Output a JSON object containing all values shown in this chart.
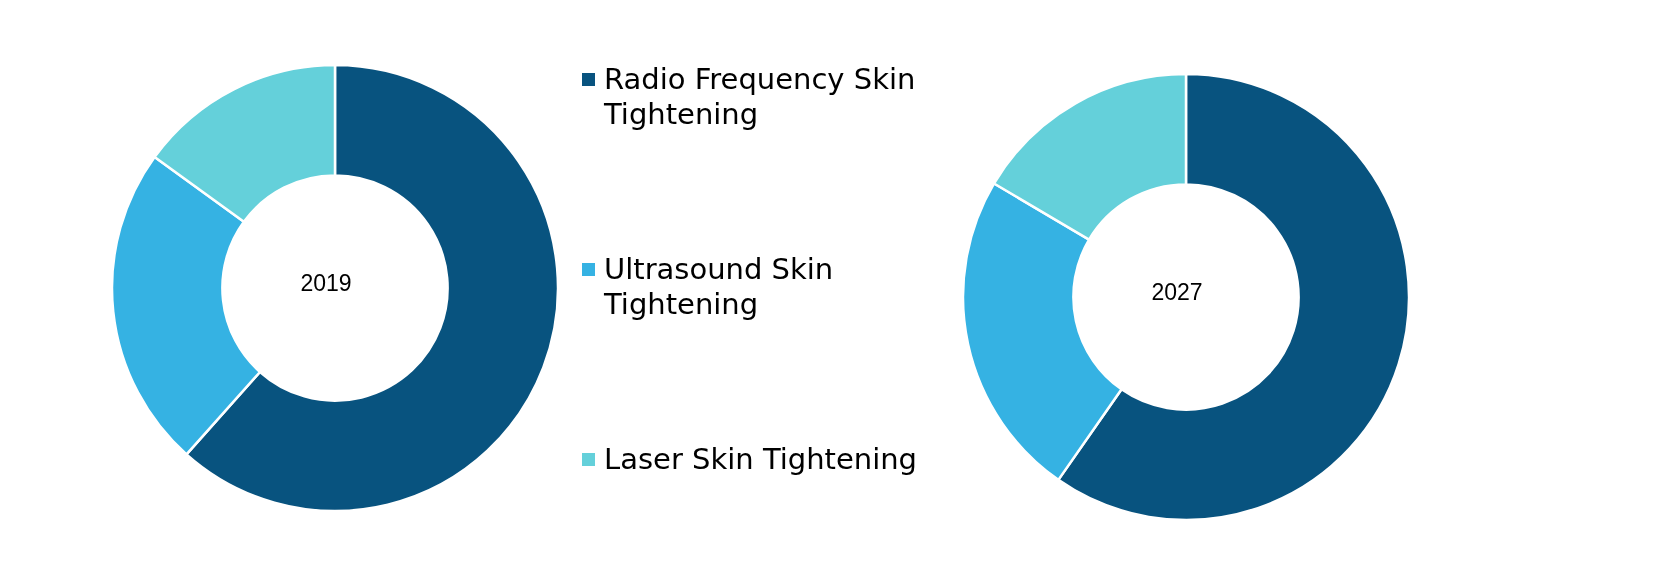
{
  "chart_data": [
    {
      "type": "donut",
      "title": "2019",
      "categories": [
        "Radio Frequency Skin Tightening",
        "Ultrasound Skin Tightening",
        "Laser Skin Tightening"
      ],
      "values": [
        61.6,
        23.4,
        15.0
      ],
      "colors": [
        "#08537f",
        "#35b2e3",
        "#64d0da"
      ],
      "legend": "right"
    },
    {
      "type": "donut",
      "title": "2027",
      "categories": [
        null,
        null,
        null
      ],
      "values": [
        59.7,
        23.8,
        16.5
      ],
      "colors": [
        "#08537f",
        "#35b2e3",
        "#64d0da"
      ]
    }
  ]
}
